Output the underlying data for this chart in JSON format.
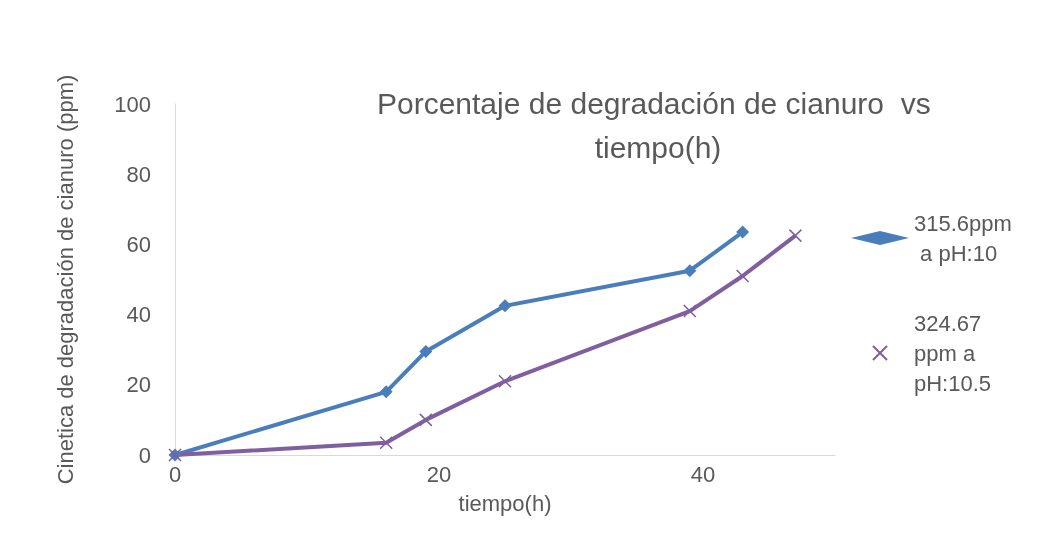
{
  "chart_data": {
    "type": "line",
    "title": "Porcentaje de degradación de cianuro  vs tiempo(h)",
    "xlabel": "tiempo(h)",
    "ylabel": "Cinetica de degradación de cianuro (ppm)",
    "xlim": [
      0,
      50
    ],
    "xticks": [
      0,
      20,
      40
    ],
    "ylim": [
      0,
      100
    ],
    "yticks": [
      0,
      20,
      40,
      60,
      80,
      100
    ],
    "grid": false,
    "legend": "right",
    "series": [
      {
        "name": "315.6ppm a pH:10",
        "color": "#4a7ebb",
        "marker": "diamond",
        "x": [
          0,
          16,
          19,
          25,
          39,
          43
        ],
        "values": [
          0,
          18,
          29.5,
          42.5,
          52.5,
          63.5
        ]
      },
      {
        "name": "324.67 ppm a pH:10.5",
        "color": "#7f5fa0",
        "marker": "cross",
        "x": [
          0,
          16,
          19,
          25,
          39,
          43,
          47
        ],
        "values": [
          0,
          3.5,
          10,
          21,
          41,
          51,
          62.5
        ]
      }
    ]
  }
}
